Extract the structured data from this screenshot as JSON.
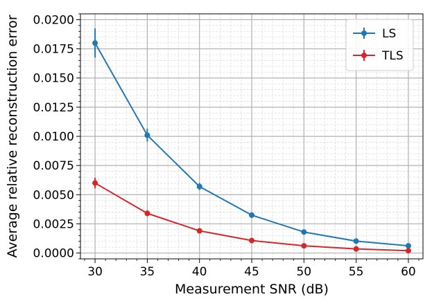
{
  "chart_data": {
    "type": "line",
    "title": "",
    "xlabel": "Measurement SNR (dB)",
    "ylabel": "Average relative reconstruction error",
    "x": [
      30,
      35,
      40,
      45,
      50,
      55,
      60
    ],
    "xlim": [
      28.6,
      61.4
    ],
    "ylim": [
      -0.0005,
      0.0205
    ],
    "x_ticks": [
      30,
      35,
      40,
      45,
      50,
      55,
      60
    ],
    "x_tick_labels": [
      "30",
      "35",
      "40",
      "45",
      "50",
      "55",
      "60"
    ],
    "y_ticks": [
      0.0,
      0.0025,
      0.005,
      0.0075,
      0.01,
      0.0125,
      0.015,
      0.0175,
      0.02
    ],
    "y_tick_labels": [
      "0.0000",
      "0.0025",
      "0.0050",
      "0.0075",
      "0.0100",
      "0.0125",
      "0.0150",
      "0.0175",
      "0.0200"
    ],
    "grid": true,
    "minor_grid": true,
    "legend_position": "top-right",
    "series": [
      {
        "name": "LS",
        "color": "#1f77b4",
        "values": [
          0.018,
          0.0101,
          0.0057,
          0.00325,
          0.0018,
          0.00102,
          0.00062
        ],
        "errors": [
          0.00125,
          0.00055,
          0.0003,
          0.00012,
          8e-05,
          5e-05,
          4e-05
        ]
      },
      {
        "name": "TLS",
        "color": "#d62728",
        "values": [
          0.006,
          0.0034,
          0.0019,
          0.00107,
          0.00062,
          0.00035,
          0.0002
        ],
        "errors": [
          0.00045,
          0.00025,
          0.00012,
          7e-05,
          4e-05,
          3e-05,
          2e-05
        ]
      }
    ]
  }
}
